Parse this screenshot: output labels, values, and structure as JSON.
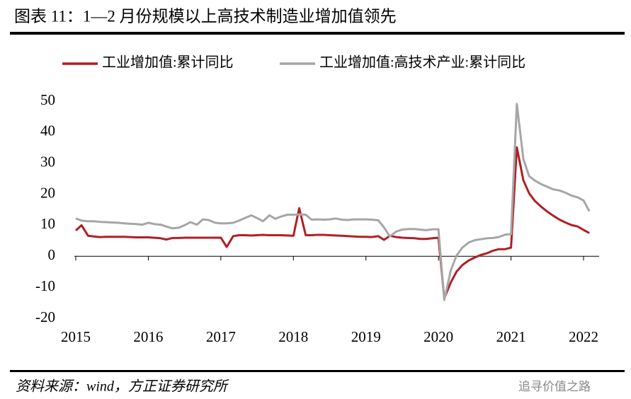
{
  "chart_data": {
    "type": "line",
    "title": "图表 11：1—2 月份规模以上高技术制造业增加值领先",
    "source": "资料来源：wind，方正证券研究所",
    "watermark": "追寻价值之路",
    "x": [
      2015.0,
      2015.08,
      2015.17,
      2015.25,
      2015.33,
      2015.42,
      2015.5,
      2015.58,
      2015.67,
      2015.75,
      2015.83,
      2015.92,
      2016.0,
      2016.08,
      2016.17,
      2016.25,
      2016.33,
      2016.42,
      2016.5,
      2016.58,
      2016.67,
      2016.75,
      2016.83,
      2016.92,
      2017.0,
      2017.08,
      2017.17,
      2017.25,
      2017.33,
      2017.42,
      2017.5,
      2017.58,
      2017.67,
      2017.75,
      2017.83,
      2017.92,
      2018.0,
      2018.08,
      2018.17,
      2018.25,
      2018.33,
      2018.42,
      2018.5,
      2018.58,
      2018.67,
      2018.75,
      2018.83,
      2018.92,
      2019.0,
      2019.08,
      2019.17,
      2019.25,
      2019.33,
      2019.42,
      2019.5,
      2019.58,
      2019.67,
      2019.75,
      2019.83,
      2019.92,
      2020.0,
      2020.08,
      2020.17,
      2020.25,
      2020.33,
      2020.42,
      2020.5,
      2020.58,
      2020.67,
      2020.75,
      2020.83,
      2020.92,
      2021.0,
      2021.08,
      2021.17,
      2021.25,
      2021.33,
      2021.42,
      2021.5,
      2021.58,
      2021.67,
      2021.75,
      2021.83,
      2021.92,
      2022.0,
      2022.08
    ],
    "series": [
      {
        "name": "工业增加值:累计同比",
        "color": "#b01f24",
        "values": [
          8.3,
          10.0,
          6.6,
          6.4,
          6.2,
          6.3,
          6.3,
          6.3,
          6.3,
          6.2,
          6.1,
          6.1,
          6.1,
          6.0,
          5.8,
          5.4,
          5.9,
          5.9,
          6.0,
          6.0,
          6.0,
          6.0,
          6.0,
          6.0,
          6.0,
          3.0,
          6.5,
          6.8,
          6.8,
          6.7,
          6.8,
          6.9,
          6.8,
          6.8,
          6.8,
          6.7,
          6.6,
          15.5,
          6.8,
          6.8,
          6.9,
          6.9,
          6.8,
          6.7,
          6.6,
          6.5,
          6.4,
          6.3,
          6.3,
          6.2,
          6.5,
          5.3,
          6.6,
          6.2,
          6.0,
          5.9,
          5.8,
          5.6,
          5.6,
          5.8,
          6.0,
          -13.5,
          -8.4,
          -4.9,
          -2.8,
          -1.3,
          -0.4,
          0.4,
          1.0,
          1.8,
          2.3,
          2.3,
          2.8,
          35.1,
          24.5,
          20.3,
          17.8,
          15.9,
          14.4,
          13.1,
          11.8,
          10.9,
          10.1,
          9.6,
          8.5,
          7.5
        ]
      },
      {
        "name": "工业增加值:高技术产业:累计同比",
        "color": "#a6a6a6",
        "values": [
          12.2,
          11.5,
          11.3,
          11.3,
          11.1,
          11.0,
          10.9,
          10.8,
          10.6,
          10.5,
          10.4,
          10.2,
          10.8,
          10.4,
          10.2,
          9.6,
          9.0,
          9.2,
          10.0,
          11.0,
          10.2,
          11.9,
          11.7,
          10.8,
          10.6,
          10.6,
          10.8,
          11.5,
          12.3,
          13.2,
          12.3,
          11.3,
          13.2,
          12.1,
          12.8,
          13.4,
          13.4,
          13.5,
          13.4,
          11.8,
          11.9,
          11.8,
          11.9,
          12.2,
          11.8,
          11.7,
          11.9,
          11.9,
          11.9,
          11.8,
          11.6,
          9.3,
          6.4,
          8.0,
          8.6,
          8.8,
          8.8,
          8.6,
          8.4,
          8.7,
          8.7,
          -14.1,
          -4.5,
          0.3,
          2.8,
          4.5,
          5.2,
          5.5,
          5.8,
          5.9,
          6.2,
          7.0,
          7.1,
          49.1,
          31.4,
          25.8,
          24.4,
          23.2,
          22.4,
          21.6,
          21.2,
          20.5,
          19.6,
          19.0,
          18.0,
          14.5
        ]
      }
    ],
    "xlim": [
      2015,
      2022
    ],
    "xticks": [
      2015,
      2016,
      2017,
      2018,
      2019,
      2020,
      2021,
      2022
    ],
    "ylim": [
      -20,
      50
    ],
    "yticks": [
      -20,
      -10,
      0,
      10,
      20,
      30,
      40,
      50
    ],
    "legend": "top"
  }
}
